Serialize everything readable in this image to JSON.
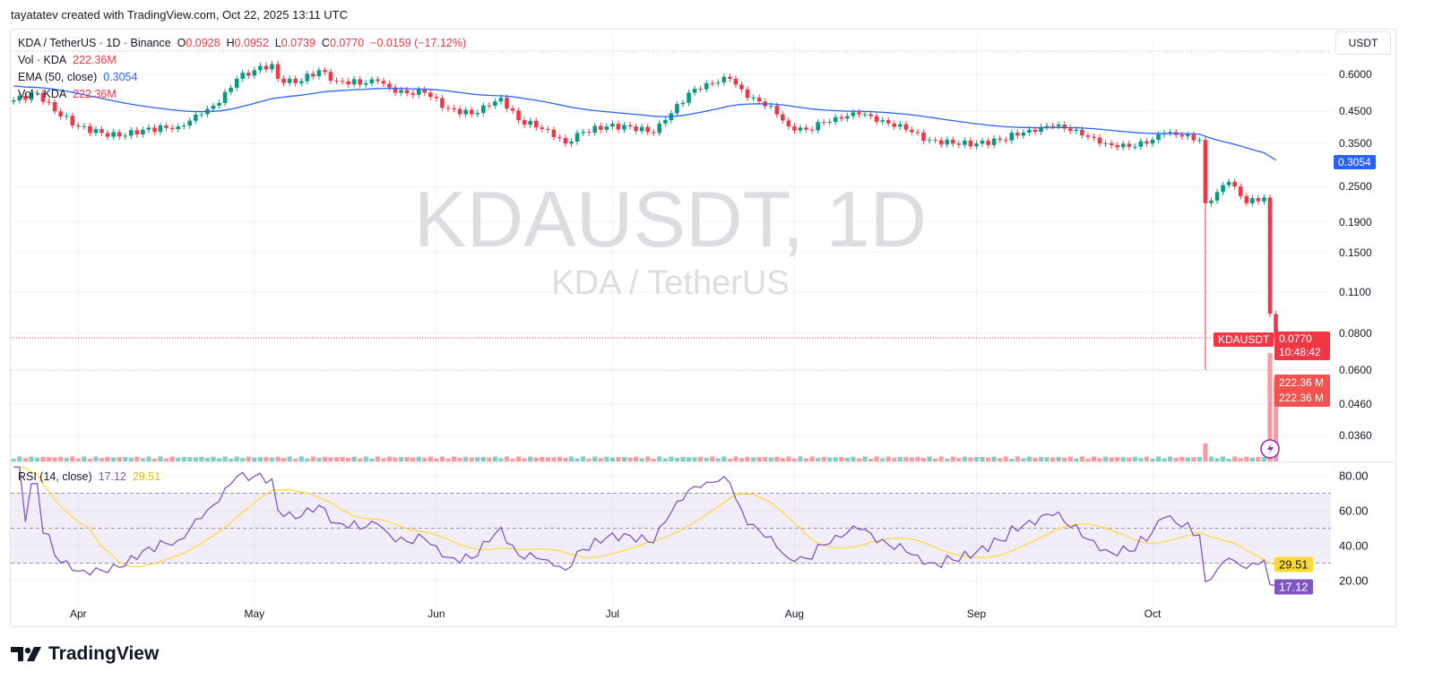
{
  "credit": "tayatatev created with TradingView.com, Oct 22, 2025 13:11 UTC",
  "legend": {
    "symbol": "KDA / TetherUS · 1D · Binance",
    "o_label": "O",
    "o": "0.0928",
    "h_label": "H",
    "h": "0.0952",
    "l_label": "L",
    "l": "0.0739",
    "c_label": "C",
    "c": "0.0770",
    "change": "−0.0159 (−17.12%)",
    "vol_label": "Vol · KDA",
    "vol_value": "222.36M",
    "ema_label": "EMA (50, close)",
    "ema_value": "0.3054",
    "vol2_label": "Vol · KDA",
    "vol2_value": "222.36M"
  },
  "watermark": {
    "title": "KDAUSDT, 1D",
    "subtitle": "KDA / TetherUS"
  },
  "currency_button": "USDT",
  "price_axis": {
    "scale": "log",
    "ticks": [
      "0.6000",
      "0.4500",
      "0.3500",
      "0.2500",
      "0.1900",
      "0.1500",
      "0.1100",
      "0.0800",
      "0.0600",
      "0.0460",
      "0.0360"
    ]
  },
  "tags": {
    "ema": "0.3054",
    "symbol": "KDAUSDT",
    "price": "0.0770",
    "countdown": "10:48:42",
    "vol1": "222.36 M",
    "vol2": "222.36 M",
    "rsi_ma": "29.51",
    "rsi": "17.12"
  },
  "rsi_legend": {
    "label": "RSI (14, close)",
    "rsi": "17.12",
    "ma": "29.51"
  },
  "rsi_axis": {
    "ticks": [
      "80.00",
      "60.00",
      "40.00",
      "20.00"
    ],
    "bands": [
      70,
      50,
      30
    ]
  },
  "time_axis": [
    "Apr",
    "May",
    "Jun",
    "Jul",
    "Aug",
    "Sep",
    "Oct"
  ],
  "colors": {
    "up": "#089981",
    "down": "#f23645",
    "ema": "#2962ff",
    "rsi": "#7e57c2",
    "rsi_ma": "#fdd835"
  },
  "footer": {
    "brand": "TradingView"
  },
  "chart_data": {
    "type": "candlestick",
    "interval": "1D",
    "yscale": "log",
    "close": [
      [
        "2025-03-21",
        0.49
      ],
      [
        "2025-03-25",
        0.52
      ],
      [
        "2025-03-28",
        0.45
      ],
      [
        "2025-04-01",
        0.4
      ],
      [
        "2025-04-05",
        0.38
      ],
      [
        "2025-04-08",
        0.37
      ],
      [
        "2025-04-12",
        0.39
      ],
      [
        "2025-04-18",
        0.4
      ],
      [
        "2025-04-22",
        0.44
      ],
      [
        "2025-04-25",
        0.48
      ],
      [
        "2025-04-28",
        0.58
      ],
      [
        "2025-05-01",
        0.62
      ],
      [
        "2025-05-04",
        0.65
      ],
      [
        "2025-05-05",
        0.58
      ],
      [
        "2025-05-08",
        0.56
      ],
      [
        "2025-05-12",
        0.62
      ],
      [
        "2025-05-15",
        0.57
      ],
      [
        "2025-05-20",
        0.56
      ],
      [
        "2025-05-22",
        0.57
      ],
      [
        "2025-05-25",
        0.52
      ],
      [
        "2025-05-30",
        0.52
      ],
      [
        "2025-06-03",
        0.46
      ],
      [
        "2025-06-07",
        0.44
      ],
      [
        "2025-06-10",
        0.47
      ],
      [
        "2025-06-12",
        0.5
      ],
      [
        "2025-06-15",
        0.42
      ],
      [
        "2025-06-20",
        0.39
      ],
      [
        "2025-06-23",
        0.35
      ],
      [
        "2025-06-25",
        0.38
      ],
      [
        "2025-06-30",
        0.4
      ],
      [
        "2025-07-04",
        0.4
      ],
      [
        "2025-07-08",
        0.38
      ],
      [
        "2025-07-10",
        0.42
      ],
      [
        "2025-07-14",
        0.52
      ],
      [
        "2025-07-17",
        0.56
      ],
      [
        "2025-07-21",
        0.58
      ],
      [
        "2025-07-24",
        0.5
      ],
      [
        "2025-07-28",
        0.47
      ],
      [
        "2025-07-31",
        0.4
      ],
      [
        "2025-08-03",
        0.39
      ],
      [
        "2025-08-08",
        0.43
      ],
      [
        "2025-08-12",
        0.44
      ],
      [
        "2025-08-16",
        0.42
      ],
      [
        "2025-08-20",
        0.39
      ],
      [
        "2025-08-24",
        0.36
      ],
      [
        "2025-08-28",
        0.35
      ],
      [
        "2025-09-01",
        0.35
      ],
      [
        "2025-09-05",
        0.36
      ],
      [
        "2025-09-10",
        0.39
      ],
      [
        "2025-09-14",
        0.4
      ],
      [
        "2025-09-18",
        0.39
      ],
      [
        "2025-09-22",
        0.35
      ],
      [
        "2025-09-25",
        0.34
      ],
      [
        "2025-09-30",
        0.35
      ],
      [
        "2025-10-03",
        0.38
      ],
      [
        "2025-10-06",
        0.37
      ],
      [
        "2025-10-09",
        0.36
      ],
      [
        "2025-10-10",
        0.22
      ],
      [
        "2025-10-12",
        0.24
      ],
      [
        "2025-10-14",
        0.26
      ],
      [
        "2025-10-17",
        0.22
      ],
      [
        "2025-10-20",
        0.23
      ],
      [
        "2025-10-21",
        0.093
      ],
      [
        "2025-10-22",
        0.077
      ]
    ],
    "notable_lows": [
      [
        "2025-10-10",
        0.06
      ],
      [
        "2025-10-22",
        0.0739
      ]
    ],
    "last_ohlc": {
      "open": 0.0928,
      "high": 0.0952,
      "low": 0.0739,
      "close": 0.077
    },
    "ema50_last": 0.3054,
    "volume_M": {
      "typical": 12,
      "2025-10-10": 48,
      "2025-10-21": 289,
      "2025-10-22": 222.36
    },
    "rsi_last": 17.12,
    "rsi_ma_last": 29.51,
    "rsi_range": [
      10,
      85
    ]
  }
}
